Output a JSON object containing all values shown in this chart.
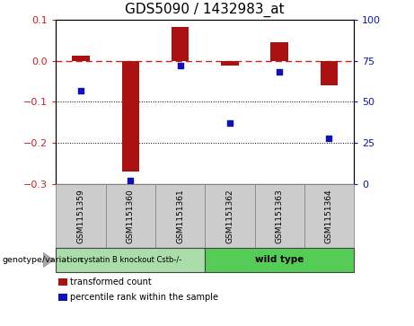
{
  "title": "GDS5090 / 1432983_at",
  "samples": [
    "GSM1151359",
    "GSM1151360",
    "GSM1151361",
    "GSM1151362",
    "GSM1151363",
    "GSM1151364"
  ],
  "bar_values": [
    0.013,
    -0.27,
    0.083,
    -0.012,
    0.045,
    -0.06
  ],
  "dot_percentile": [
    57,
    2,
    72,
    37,
    68,
    28
  ],
  "ylim_left": [
    -0.3,
    0.1
  ],
  "ylim_right": [
    0,
    100
  ],
  "yticks_left": [
    -0.3,
    -0.2,
    -0.1,
    0.0,
    0.1
  ],
  "yticks_right": [
    0,
    25,
    50,
    75,
    100
  ],
  "bar_color": "#aa1111",
  "dot_color": "#1111bb",
  "ref_line_color": "#cc2222",
  "group1_label": "cystatin B knockout Cstb-/-",
  "group2_label": "wild type",
  "group1_color": "#aaddaa",
  "group2_color": "#55cc55",
  "group1_indices": [
    0,
    1,
    2
  ],
  "group2_indices": [
    3,
    4,
    5
  ],
  "genotype_label": "genotype/variation",
  "legend_bar_label": "transformed count",
  "legend_dot_label": "percentile rank within the sample",
  "bar_width": 0.35,
  "title_fontsize": 11,
  "tick_fontsize": 8,
  "sample_fontsize": 6.5,
  "label_fontsize": 7
}
